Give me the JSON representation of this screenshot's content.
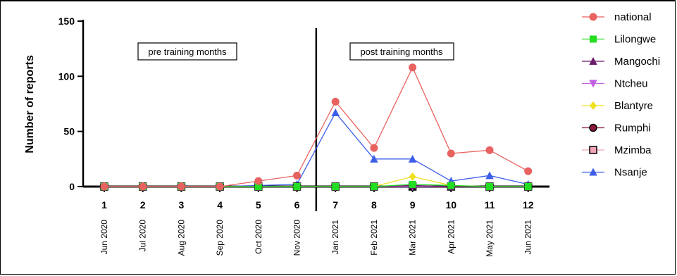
{
  "chart_data": {
    "type": "line",
    "ylabel": "Number of reports",
    "ylim": [
      0,
      150
    ],
    "yticks": [
      0,
      50,
      100,
      150
    ],
    "x": [
      "1",
      "2",
      "3",
      "4",
      "5",
      "6",
      "7",
      "8",
      "9",
      "10",
      "11",
      "12"
    ],
    "month_labels": [
      "Jun 2020",
      "Jul 2020",
      "Aug 2020",
      "Sep 2020",
      "Oct 2020",
      "Nov 2020",
      "Jan 2021",
      "Feb 2021",
      "Mar 2021",
      "Apr 2021",
      "May 2021",
      "Jun 2021"
    ],
    "period_labels": {
      "pre": "pre training months",
      "post": "post training months"
    },
    "divider_after_x": 6.5,
    "legend_position": "right",
    "series": [
      {
        "name": "national",
        "color": "#e8625f",
        "marker": "circle",
        "values": [
          0,
          0,
          0,
          0,
          5,
          10,
          77,
          35,
          108,
          30,
          33,
          14
        ]
      },
      {
        "name": "Lilongwe",
        "color": "#22dd22",
        "marker": "square",
        "values": [
          0,
          0,
          0,
          0,
          0,
          0,
          0,
          0,
          2,
          1,
          0,
          0
        ]
      },
      {
        "name": "Mangochi",
        "color": "#6a1b6a",
        "marker": "triangle-up",
        "values": [
          0,
          0,
          0,
          0,
          0,
          0,
          0,
          0,
          1,
          0,
          0,
          0
        ]
      },
      {
        "name": "Ntcheu",
        "color": "#c060e0",
        "marker": "triangle-down",
        "values": [
          0,
          0,
          0,
          0,
          0,
          0,
          0,
          0,
          0,
          0,
          0,
          0
        ]
      },
      {
        "name": "Blantyre",
        "color": "#f0e020",
        "marker": "diamond",
        "values": [
          0,
          0,
          0,
          0,
          0,
          0,
          0,
          0,
          9,
          1,
          0,
          0
        ]
      },
      {
        "name": "Rumphi",
        "color": "#8b1a3a",
        "marker": "circle-outline",
        "values": [
          0,
          0,
          0,
          0,
          0,
          0,
          0,
          0,
          0,
          0,
          0,
          0
        ]
      },
      {
        "name": "Mzimba",
        "color": "#f4a6b8",
        "marker": "square-outline",
        "values": [
          0,
          0,
          0,
          0,
          0,
          0,
          0,
          0,
          0,
          0,
          0,
          0
        ]
      },
      {
        "name": "Nsanje",
        "color": "#3d5ee8",
        "marker": "triangle-up",
        "values": [
          0,
          0,
          0,
          0,
          1,
          2,
          67,
          25,
          25,
          5,
          10,
          2
        ]
      }
    ]
  }
}
